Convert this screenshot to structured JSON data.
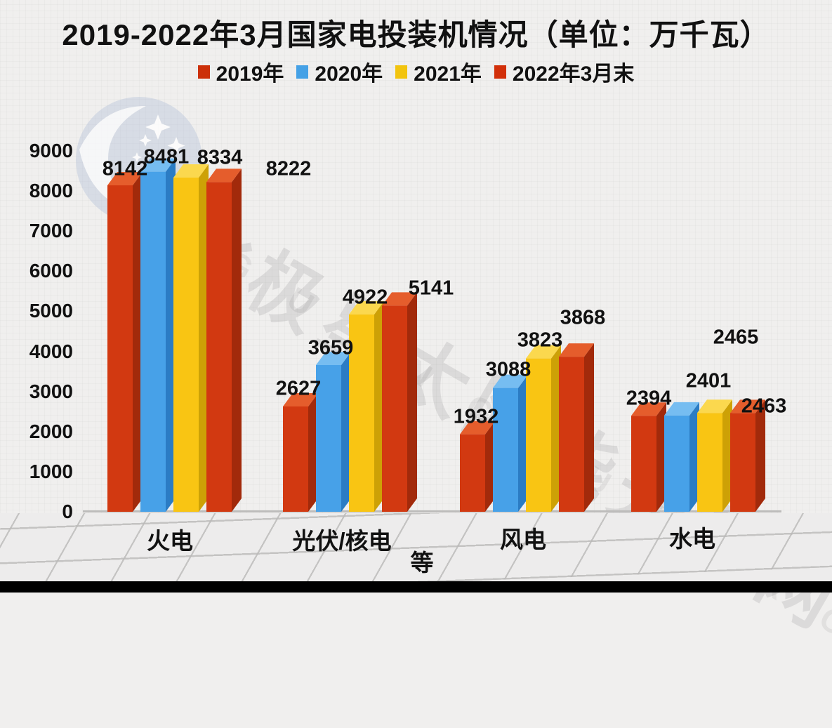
{
  "title": "2019-2022年3月国家电投装机情况（单位：万千瓦）",
  "legend": [
    {
      "label": "2019年",
      "color": "#cc3009"
    },
    {
      "label": "2020年",
      "color": "#45a1e6"
    },
    {
      "label": "2021年",
      "color": "#f2c40e"
    },
    {
      "label": "2022年3月末",
      "color": "#d2300a"
    }
  ],
  "watermark": {
    "logo": "bjx-polestar-logo",
    "text_cn": "北极星太阳能光伏网",
    "text_en": "G U A N G F U  B J X  C O M"
  },
  "chart_data": {
    "type": "bar",
    "categories": [
      "火电",
      "光伏/核电等",
      "风电",
      "水电"
    ],
    "categories_lines": [
      [
        "火电"
      ],
      [
        "光伏/核电",
        "等"
      ],
      [
        "风电"
      ],
      [
        "水电"
      ]
    ],
    "series": [
      {
        "name": "2019年",
        "color": "#d23911",
        "color_top": "#e55d2c",
        "color_side": "#a22a0b",
        "values": [
          8142,
          2627,
          1932,
          2394
        ]
      },
      {
        "name": "2020年",
        "color": "#47a1e8",
        "color_top": "#76bdf1",
        "color_side": "#2b7cc4",
        "values": [
          8481,
          3659,
          3088,
          2401
        ]
      },
      {
        "name": "2021年",
        "color": "#f9c513",
        "color_top": "#fbd84e",
        "color_side": "#cda106",
        "values": [
          8334,
          4922,
          3823,
          2465
        ]
      },
      {
        "name": "2022年3月末",
        "color": "#d23911",
        "color_top": "#e55d2c",
        "color_side": "#a22a0b",
        "values": [
          8222,
          5141,
          3868,
          2463
        ]
      }
    ],
    "ylabel": "万千瓦",
    "ylim": [
      0,
      9000
    ],
    "ytick_step": 1000,
    "yticks": [
      0,
      1000,
      2000,
      3000,
      4000,
      5000,
      6000,
      7000,
      8000,
      9000
    ],
    "legend_position": "top",
    "grid": false
  }
}
